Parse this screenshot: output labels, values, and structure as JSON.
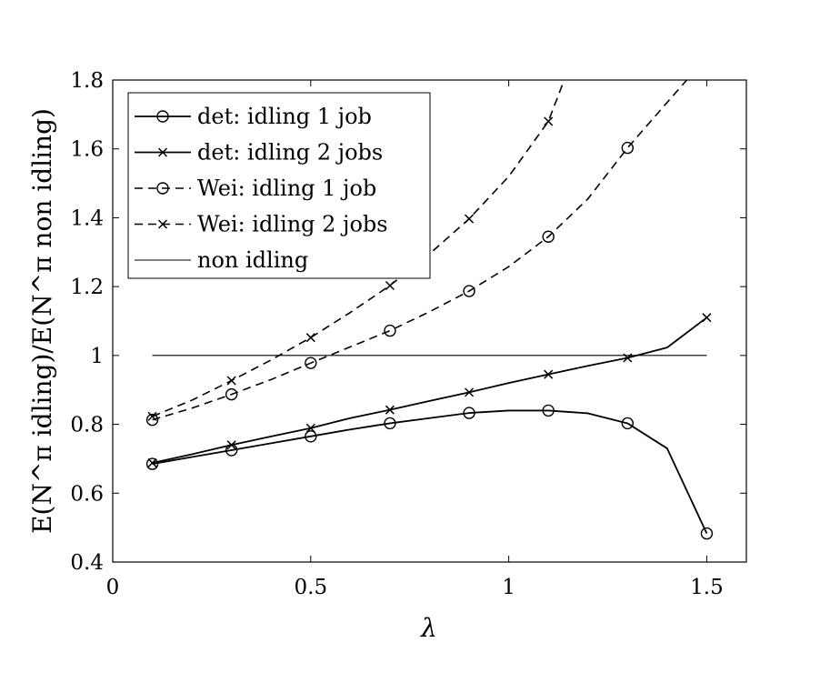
{
  "chart_data": {
    "type": "line",
    "xlabel": "λ",
    "ylabel": "E(N^π idling)/E(N^π non idling)",
    "xlim": [
      0,
      1.6
    ],
    "ylim": [
      0.4,
      1.8
    ],
    "xticks": [
      0,
      0.5,
      1,
      1.5
    ],
    "xtick_labels": [
      "0",
      "0.5",
      "1",
      "1.5"
    ],
    "yticks": [
      0.4,
      0.6,
      0.8,
      1.0,
      1.2,
      1.4,
      1.6,
      1.8
    ],
    "ytick_labels": [
      "0.4",
      "0.6",
      "0.8",
      "1",
      "1.2",
      "1.4",
      "1.6",
      "1.8"
    ],
    "grid": false,
    "legend_position": "top-left",
    "series": [
      {
        "name": "det: idling 1 job",
        "line": "solid",
        "marker": "circle",
        "color": "#000000",
        "x": [
          0.1,
          0.2,
          0.3,
          0.4,
          0.5,
          0.6,
          0.7,
          0.8,
          0.9,
          1.0,
          1.1,
          1.2,
          1.3,
          1.4,
          1.5
        ],
        "y": [
          0.685,
          0.705,
          0.725,
          0.745,
          0.765,
          0.785,
          0.803,
          0.818,
          0.833,
          0.84,
          0.84,
          0.832,
          0.803,
          0.73,
          0.483
        ],
        "marker_x": [
          0.1,
          0.3,
          0.5,
          0.7,
          0.9,
          1.1,
          1.3,
          1.5
        ]
      },
      {
        "name": "det: idling 2 jobs",
        "line": "solid",
        "marker": "x",
        "color": "#000000",
        "x": [
          0.1,
          0.2,
          0.3,
          0.4,
          0.5,
          0.6,
          0.7,
          0.8,
          0.9,
          1.0,
          1.1,
          1.2,
          1.3,
          1.4,
          1.5
        ],
        "y": [
          0.688,
          0.713,
          0.74,
          0.765,
          0.789,
          0.818,
          0.842,
          0.868,
          0.893,
          0.92,
          0.945,
          0.97,
          0.993,
          1.023,
          1.11
        ],
        "marker_x": [
          0.1,
          0.3,
          0.5,
          0.7,
          0.9,
          1.1,
          1.3,
          1.5
        ]
      },
      {
        "name": "Wei: idling 1 job",
        "line": "dashed",
        "marker": "circle",
        "color": "#000000",
        "x": [
          0.1,
          0.2,
          0.3,
          0.4,
          0.5,
          0.6,
          0.7,
          0.8,
          0.9,
          1.0,
          1.1,
          1.2,
          1.3,
          1.4,
          1.48
        ],
        "y": [
          0.813,
          0.847,
          0.887,
          0.93,
          0.978,
          1.025,
          1.072,
          1.127,
          1.187,
          1.258,
          1.345,
          1.455,
          1.603,
          1.735,
          1.84
        ],
        "marker_x": [
          0.1,
          0.3,
          0.5,
          0.7,
          0.9,
          1.1,
          1.3
        ]
      },
      {
        "name": "Wei: idling 2 jobs",
        "line": "dashed",
        "marker": "x",
        "color": "#000000",
        "x": [
          0.1,
          0.2,
          0.3,
          0.4,
          0.5,
          0.6,
          0.7,
          0.8,
          0.9,
          1.0,
          1.1,
          1.15
        ],
        "y": [
          0.823,
          0.87,
          0.927,
          0.987,
          1.052,
          1.125,
          1.203,
          1.295,
          1.397,
          1.52,
          1.68,
          1.83
        ],
        "marker_x": [
          0.1,
          0.3,
          0.5,
          0.7,
          0.9,
          1.1
        ]
      },
      {
        "name": "non idling",
        "line": "thin",
        "marker": "none",
        "color": "#000000",
        "x": [
          0.1,
          1.5
        ],
        "y": [
          1.0,
          1.0
        ],
        "marker_x": []
      }
    ]
  }
}
